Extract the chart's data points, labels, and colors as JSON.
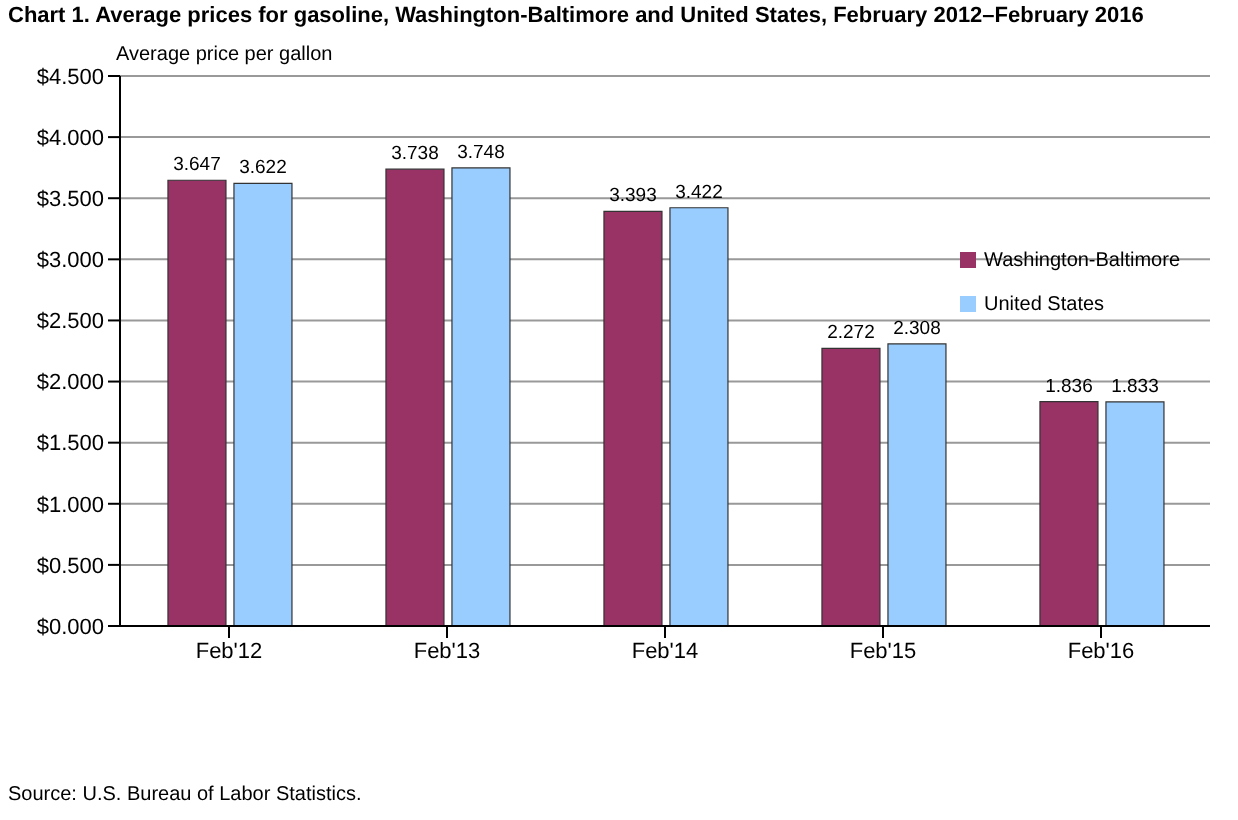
{
  "chart_data": {
    "type": "bar",
    "title": "Chart 1. Average prices for gasoline, Washington-Baltimore and United States, February 2012–February 2016",
    "ylabel": "Average price per gallon",
    "categories": [
      "Feb'12",
      "Feb'13",
      "Feb'14",
      "Feb'15",
      "Feb'16"
    ],
    "series": [
      {
        "name": "Washington-Baltimore",
        "color": "#993366",
        "values": [
          3.647,
          3.738,
          3.393,
          2.272,
          1.836
        ]
      },
      {
        "name": "United States",
        "color": "#99ccff",
        "values": [
          3.622,
          3.748,
          3.422,
          2.308,
          1.833
        ]
      }
    ],
    "ylim": [
      0,
      4.5
    ],
    "yticks": [
      {
        "value": 0,
        "label": "$0.000"
      },
      {
        "value": 0.5,
        "label": "$0.500"
      },
      {
        "value": 1,
        "label": "$1.000"
      },
      {
        "value": 1.5,
        "label": "$1.500"
      },
      {
        "value": 2,
        "label": "$2.000"
      },
      {
        "value": 2.5,
        "label": "$2.500"
      },
      {
        "value": 3,
        "label": "$3.000"
      },
      {
        "value": 3.5,
        "label": "$3.500"
      },
      {
        "value": 4,
        "label": "$4.000"
      },
      {
        "value": 4.5,
        "label": "$4.500"
      }
    ],
    "grid": "y",
    "legend": "right",
    "data_labels": true,
    "annotations": [
      "Source: U.S. Bureau of Labor Statistics."
    ]
  }
}
